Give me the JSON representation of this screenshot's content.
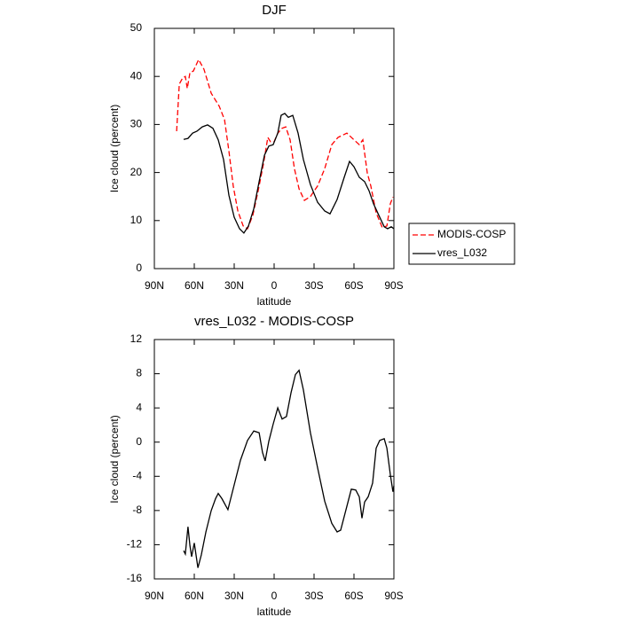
{
  "chart_data": [
    {
      "type": "line",
      "title": "DJF",
      "xlabel": "latitude",
      "ylabel": "Ice cloud (percent)",
      "xlim": [
        90,
        -90
      ],
      "xticks": [
        {
          "value": 90,
          "label": "90N"
        },
        {
          "value": 60,
          "label": "60N"
        },
        {
          "value": 30,
          "label": "30N"
        },
        0,
        {
          "value": -30,
          "label": "30S"
        },
        {
          "value": -60,
          "label": "60S"
        },
        {
          "value": -90,
          "label": "90S"
        }
      ],
      "ylim": [
        0,
        50
      ],
      "yticks": [
        0,
        10,
        20,
        30,
        40,
        50
      ],
      "legend": "right",
      "series": [
        {
          "name": "MODIS-COSP",
          "color": "#ff0000",
          "dash": "dashed",
          "x": [
            73.3,
            71.3,
            68.7,
            66.7,
            65.3,
            63.3,
            60.7,
            56.7,
            52.7,
            47.3,
            41.3,
            37.3,
            34,
            30.7,
            27.3,
            23.3,
            20,
            16,
            12,
            8,
            4.7,
            2.7,
            0,
            -2.7,
            -6,
            -8.7,
            -12,
            -15.3,
            -18.7,
            -22.7,
            -27.3,
            -32.7,
            -38,
            -43.3,
            -48,
            -54.7,
            -60,
            -64,
            -66.7,
            -70,
            -72.7,
            -76.7,
            -81.3,
            -84.7,
            -87.3,
            -89.3
          ],
          "values": [
            28.6,
            38.4,
            39.7,
            40.0,
            37.5,
            40.8,
            41.1,
            43.5,
            41.5,
            36.5,
            33.8,
            31.0,
            24.5,
            17.2,
            12.0,
            8.9,
            8.3,
            11.1,
            16.2,
            21.8,
            27.3,
            26.4,
            26.4,
            28.2,
            29.2,
            29.5,
            26.8,
            20.8,
            16.6,
            14.2,
            15.0,
            17.2,
            20.8,
            25.8,
            27.3,
            28.2,
            26.8,
            25.8,
            26.8,
            19.9,
            17.2,
            11.6,
            8.5,
            8.9,
            13.5,
            14.9
          ]
        },
        {
          "name": "vres_L032",
          "color": "#000000",
          "dash": "solid",
          "x": [
            68,
            64.7,
            61.3,
            58,
            54,
            50,
            46,
            42,
            38,
            34,
            30,
            26,
            22.7,
            19.3,
            15.3,
            11.3,
            7.3,
            4,
            0.7,
            -2.7,
            -5.3,
            -8,
            -10.7,
            -14,
            -18,
            -22,
            -27.3,
            -32.7,
            -38,
            -42,
            -47.3,
            -52.7,
            -56.7,
            -60,
            -64,
            -68,
            -71.3,
            -74.7,
            -78.7,
            -82.7,
            -85.3,
            -88,
            -90
          ],
          "values": [
            26.9,
            27.1,
            28.2,
            28.6,
            29.5,
            29.9,
            29.2,
            26.8,
            22.7,
            15.3,
            10.7,
            8.3,
            7.4,
            8.9,
            12.5,
            18.1,
            23.6,
            25.5,
            25.8,
            28.2,
            31.9,
            32.3,
            31.5,
            31.9,
            28.2,
            22.7,
            17.5,
            13.8,
            12.0,
            11.4,
            14.4,
            19.0,
            22.3,
            21.2,
            19.0,
            18.1,
            16.2,
            13.5,
            11.1,
            8.7,
            8.3,
            8.7,
            8.3
          ]
        }
      ]
    },
    {
      "type": "line",
      "title": "vres_L032 - MODIS-COSP",
      "xlabel": "latitude",
      "ylabel": "Ice cloud (percent)",
      "xlim": [
        90,
        -90
      ],
      "xticks": [
        {
          "value": 90,
          "label": "90N"
        },
        {
          "value": 60,
          "label": "60N"
        },
        {
          "value": 30,
          "label": "30N"
        },
        0,
        {
          "value": -30,
          "label": "30S"
        },
        {
          "value": -60,
          "label": "60S"
        },
        {
          "value": -90,
          "label": "90S"
        }
      ],
      "ylim": [
        -16,
        12
      ],
      "yticks": [
        -16,
        -12,
        -8,
        -4,
        0,
        4,
        8,
        12
      ],
      "series": [
        {
          "color": "#000000",
          "dash": "solid",
          "x": [
            68,
            66.7,
            64.7,
            63.3,
            62,
            60,
            57.3,
            54.7,
            51.3,
            47.3,
            44,
            42,
            39.3,
            34.7,
            30,
            25.3,
            20,
            15.3,
            11.3,
            8.7,
            6.7,
            4,
            0.7,
            -2.7,
            -6,
            -9.3,
            -12.7,
            -16,
            -18.7,
            -22,
            -27.3,
            -32.7,
            -38,
            -43.3,
            -47.3,
            -50,
            -54,
            -58,
            -61.3,
            -64,
            -66,
            -68,
            -70.7,
            -74,
            -76.7,
            -79.3,
            -82.7,
            -84.7,
            -87.3,
            -89.3,
            -90
          ],
          "values": [
            -12.7,
            -13.1,
            -9.9,
            -12.1,
            -13.4,
            -11.8,
            -14.7,
            -13.2,
            -10.5,
            -8.0,
            -6.6,
            -6.0,
            -6.6,
            -7.9,
            -5.0,
            -2.1,
            0.2,
            1.3,
            1.1,
            -1.2,
            -2.2,
            0.1,
            2.1,
            4.0,
            2.7,
            3.0,
            5.8,
            7.9,
            8.4,
            6.1,
            1.1,
            -3.0,
            -6.9,
            -9.5,
            -10.5,
            -10.3,
            -7.9,
            -5.5,
            -5.6,
            -6.4,
            -8.9,
            -7.0,
            -6.4,
            -4.8,
            -0.7,
            0.2,
            0.4,
            -0.7,
            -3.8,
            -5.8,
            -5.1
          ]
        }
      ]
    }
  ]
}
